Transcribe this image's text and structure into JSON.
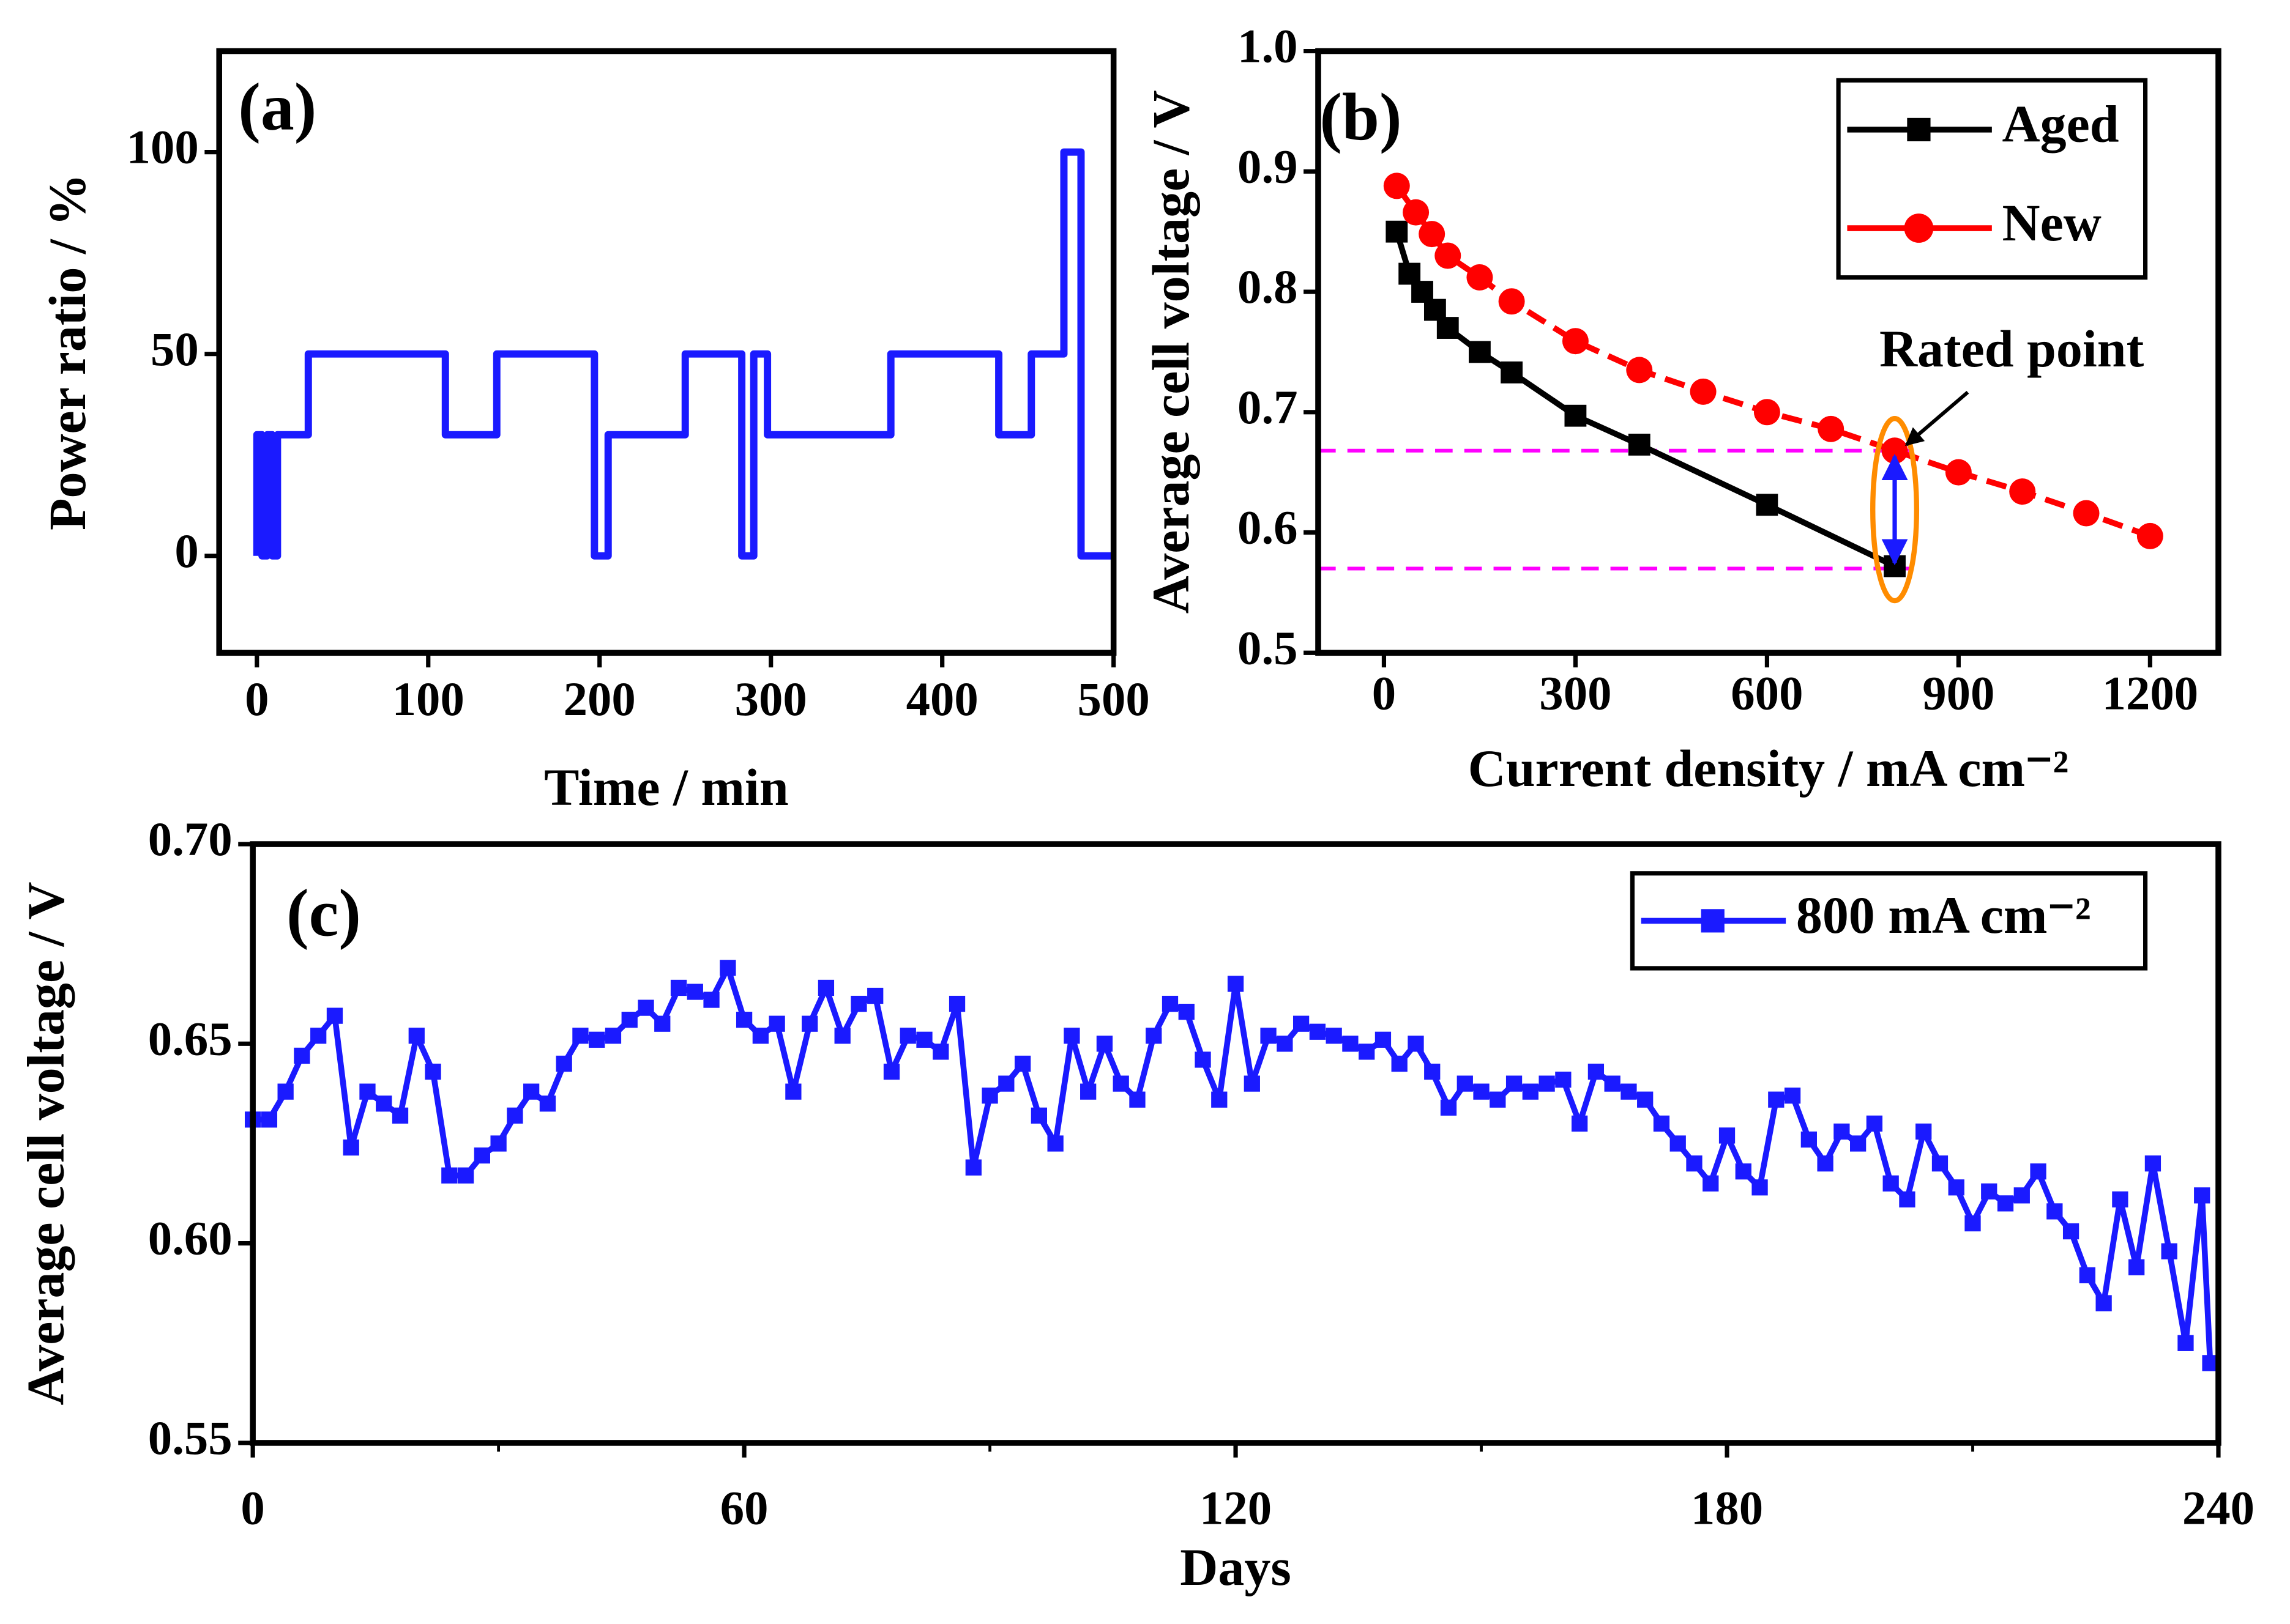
{
  "chart_data": [
    {
      "type": "line",
      "panel_label": "(a)",
      "xlabel": "Time / min",
      "ylabel": "Power ratio / %",
      "xlim": [
        -22,
        500
      ],
      "xticks": [
        0,
        100,
        200,
        300,
        400,
        500
      ],
      "ylim": [
        -24,
        125
      ],
      "yticks": [
        0,
        50,
        100
      ],
      "series": [
        {
          "color": "#1a1aff",
          "marker": "none",
          "x": [
            0,
            0,
            3,
            3,
            6,
            6,
            9,
            9,
            12,
            12,
            30,
            30,
            110,
            110,
            140,
            140,
            197,
            197,
            205,
            205,
            250,
            250,
            283,
            283,
            290,
            290,
            298,
            298,
            370,
            370,
            433,
            433,
            452,
            452,
            471,
            471,
            481,
            481,
            500
          ],
          "values": [
            0,
            30,
            30,
            0,
            0,
            30,
            30,
            0,
            0,
            30,
            30,
            50,
            50,
            30,
            30,
            50,
            50,
            0,
            0,
            30,
            30,
            50,
            50,
            0,
            0,
            50,
            50,
            30,
            30,
            50,
            50,
            30,
            30,
            50,
            50,
            100,
            100,
            0,
            0
          ]
        }
      ]
    },
    {
      "type": "line",
      "panel_label": "(b)",
      "xlabel": "Current density / mA cm⁻²",
      "ylabel": "Average cell voltage / V",
      "xlim": [
        -103,
        1307
      ],
      "xticks": [
        0,
        300,
        600,
        900,
        1200
      ],
      "ylim": [
        0.5,
        1.0
      ],
      "yticks": [
        {
          "value": 0.5,
          "label": "0.5"
        },
        {
          "value": 0.6,
          "label": "0.6"
        },
        {
          "value": 0.7,
          "label": "0.7"
        },
        {
          "value": 0.8,
          "label": "0.8"
        },
        {
          "value": 0.9,
          "label": "0.9"
        },
        {
          "value": 1.0,
          "label": "1.0"
        }
      ],
      "legend": "upper right",
      "hlines": [
        0.668,
        0.57
      ],
      "annotation": {
        "text": "Rated point",
        "x": 800,
        "y": 0.668
      },
      "series": [
        {
          "name": "Aged",
          "color": "#000000",
          "marker": "square",
          "linestyle": "solid",
          "x": [
            20,
            40,
            60,
            80,
            100,
            150,
            200,
            300,
            400,
            600,
            800
          ],
          "values": [
            0.85,
            0.815,
            0.8,
            0.785,
            0.77,
            0.75,
            0.733,
            0.697,
            0.673,
            0.623,
            0.572
          ]
        },
        {
          "name": "New",
          "color": "#ff0000",
          "marker": "circle",
          "linestyle": "dashed",
          "x": [
            20,
            50,
            75,
            100,
            150,
            200,
            300,
            400,
            500,
            600,
            700,
            800,
            900,
            1000,
            1100,
            1200
          ],
          "values": [
            0.888,
            0.866,
            0.848,
            0.83,
            0.812,
            0.792,
            0.759,
            0.735,
            0.717,
            0.7,
            0.686,
            0.668,
            0.65,
            0.634,
            0.616,
            0.597
          ]
        }
      ]
    },
    {
      "type": "line",
      "panel_label": "(c)",
      "xlabel": "Days",
      "ylabel": "Average cell voltage / V",
      "xlim": [
        0,
        240
      ],
      "xticks": [
        0,
        60,
        120,
        180,
        240
      ],
      "xminorticks": [
        30,
        90,
        150,
        210
      ],
      "ylim": [
        0.55,
        0.7
      ],
      "yticks": [
        {
          "value": 0.55,
          "label": "0.55"
        },
        {
          "value": 0.6,
          "label": "0.60"
        },
        {
          "value": 0.65,
          "label": "0.65"
        },
        {
          "value": 0.7,
          "label": "0.70"
        }
      ],
      "legend": "upper right",
      "series": [
        {
          "name": "800 mA cm⁻²",
          "color": "#1a1aff",
          "marker": "square",
          "linestyle": "solid",
          "x": [
            0,
            2,
            4,
            6,
            8,
            10,
            12,
            14,
            16,
            18,
            20,
            22,
            24,
            26,
            28,
            30,
            32,
            34,
            36,
            38,
            40,
            42,
            44,
            46,
            48,
            50,
            52,
            54,
            56,
            58,
            60,
            62,
            64,
            66,
            68,
            70,
            72,
            74,
            76,
            78,
            80,
            82,
            84,
            86,
            88,
            90,
            92,
            94,
            96,
            98,
            100,
            102,
            104,
            106,
            108,
            110,
            112,
            114,
            116,
            118,
            120,
            122,
            124,
            126,
            128,
            130,
            132,
            134,
            136,
            138,
            140,
            142,
            144,
            146,
            148,
            150,
            152,
            154,
            156,
            158,
            160,
            162,
            164,
            166,
            168,
            170,
            172,
            174,
            176,
            178,
            180,
            182,
            184,
            186,
            188,
            190,
            192,
            194,
            196,
            198,
            200,
            202,
            204,
            206,
            208,
            210,
            212,
            214,
            216,
            218,
            220,
            222,
            224,
            226,
            228,
            230,
            232,
            234,
            236,
            238,
            239
          ],
          "values": [
            0.631,
            0.631,
            0.638,
            0.647,
            0.652,
            0.657,
            0.624,
            0.638,
            0.635,
            0.632,
            0.652,
            0.643,
            0.617,
            0.617,
            0.622,
            0.625,
            0.632,
            0.638,
            0.635,
            0.645,
            0.652,
            0.651,
            0.652,
            0.656,
            0.659,
            0.655,
            0.664,
            0.663,
            0.661,
            0.669,
            0.656,
            0.652,
            0.655,
            0.638,
            0.655,
            0.664,
            0.652,
            0.66,
            0.662,
            0.643,
            0.652,
            0.651,
            0.648,
            0.66,
            0.619,
            0.637,
            0.64,
            0.645,
            0.632,
            0.625,
            0.652,
            0.638,
            0.65,
            0.64,
            0.636,
            0.652,
            0.66,
            0.658,
            0.646,
            0.636,
            0.665,
            0.64,
            0.652,
            0.65,
            0.655,
            0.653,
            0.652,
            0.65,
            0.648,
            0.651,
            0.645,
            0.65,
            0.643,
            0.634,
            0.64,
            0.638,
            0.636,
            0.64,
            0.638,
            0.64,
            0.641,
            0.63,
            0.643,
            0.64,
            0.638,
            0.636,
            0.63,
            0.625,
            0.62,
            0.615,
            0.627,
            0.618,
            0.614,
            0.636,
            0.637,
            0.626,
            0.62,
            0.628,
            0.625,
            0.63,
            0.615,
            0.611,
            0.628,
            0.62,
            0.614,
            0.605,
            0.613,
            0.61,
            0.612,
            0.618,
            0.608,
            0.603,
            0.592,
            0.585,
            0.611,
            0.594,
            0.62,
            0.598,
            0.575,
            0.612,
            0.57
          ]
        }
      ]
    }
  ]
}
